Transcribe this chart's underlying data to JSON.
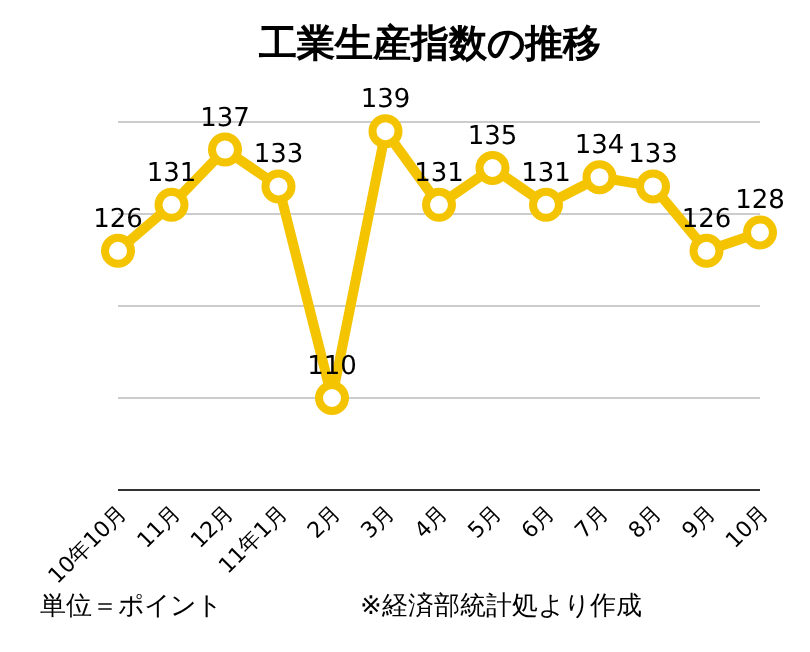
{
  "chart_data": {
    "type": "line",
    "title": "工業生産指数の推移",
    "categories": [
      "10年10月",
      "11月",
      "12月",
      "11年1月",
      "2月",
      "3月",
      "4月",
      "5月",
      "6月",
      "7月",
      "8月",
      "9月",
      "10月"
    ],
    "values": [
      126,
      131,
      137,
      133,
      110,
      139,
      131,
      135,
      131,
      134,
      133,
      126,
      128
    ],
    "color": "#f5c400",
    "marker": "circle",
    "data_labels": true,
    "grid": "y",
    "ylim": [
      100,
      140
    ],
    "yticks": [
      {
        "value": 100,
        "label": null
      },
      {
        "value": 110,
        "label": null
      },
      {
        "value": 120,
        "label": null
      },
      {
        "value": 130,
        "label": null
      },
      {
        "value": 140,
        "label": null
      }
    ],
    "tick_labels": "x",
    "annotations": [
      "単位＝ポイント",
      "※経済部統計処より作成"
    ]
  }
}
